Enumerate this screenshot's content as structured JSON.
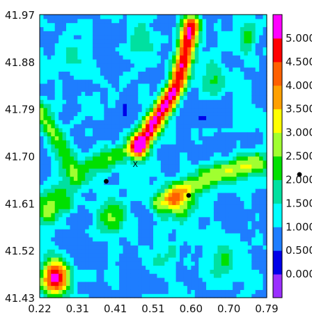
{
  "chart_data": {
    "type": "heatmap",
    "title": "",
    "xlabel": "",
    "ylabel": "",
    "xlim": [
      0.22,
      0.79
    ],
    "ylim": [
      41.43,
      41.97
    ],
    "x_ticks": [
      "0.22",
      "0.31",
      "0.41",
      "0.51",
      "0.60",
      "0.70",
      "0.79"
    ],
    "y_ticks": [
      "41.43",
      "41.52",
      "41.61",
      "41.70",
      "41.79",
      "41.88",
      "41.97"
    ],
    "colorbar": {
      "levels": [
        0.0,
        0.5,
        1.0,
        1.5,
        2.0,
        2.5,
        3.0,
        3.5,
        4.0,
        4.5,
        5.0
      ],
      "labels": [
        "0.000",
        "0.500",
        "1.000",
        "1.500",
        "2.000",
        "2.500",
        "3.000",
        "3.500",
        "4.000",
        "4.500",
        "5.000"
      ],
      "colors": [
        "#9a2fff",
        "#0000e8",
        "#1e7dff",
        "#00ffff",
        "#00e0a0",
        "#00e000",
        "#a0ff30",
        "#ffff00",
        "#ffa000",
        "#ff6000",
        "#ff0000",
        "#ff00ff"
      ]
    },
    "field_features": [
      {
        "shape": "ridge",
        "x": [
          0.47,
          0.57,
          0.6
        ],
        "y": [
          41.72,
          41.84,
          41.95
        ],
        "peak": 4.8
      },
      {
        "shape": "ridge",
        "x": [
          0.52,
          0.64,
          0.77
        ],
        "y": [
          41.61,
          41.66,
          41.69
        ],
        "peak": 2.6
      },
      {
        "shape": "peak",
        "x": 0.26,
        "y": 41.47,
        "peak": 5.0
      },
      {
        "shape": "peak",
        "x": 0.57,
        "y": 41.61,
        "peak": 2.6
      },
      {
        "shape": "peak",
        "x": 0.4,
        "y": 41.58,
        "peak": 2.2
      },
      {
        "shape": "peak",
        "x": 0.24,
        "y": 41.6,
        "peak": 2.0
      },
      {
        "shape": "peak",
        "x": 0.28,
        "y": 41.63,
        "peak": 1.9
      },
      {
        "shape": "ridge",
        "x": [
          0.22,
          0.31,
          0.46
        ],
        "y": [
          41.79,
          41.67,
          41.72
        ],
        "peak": 2.2
      },
      {
        "shape": "peak",
        "x": 0.66,
        "y": 41.85,
        "peak": 1.6
      },
      {
        "shape": "peak",
        "x": 0.74,
        "y": 41.93,
        "peak": 1.5
      },
      {
        "shape": "peak",
        "x": 0.48,
        "y": 41.92,
        "peak": 1.4
      },
      {
        "shape": "peak",
        "x": 0.31,
        "y": 41.9,
        "peak": 1.2
      },
      {
        "shape": "peak",
        "x": 0.68,
        "y": 41.5,
        "peak": 1.7
      },
      {
        "shape": "peak",
        "x": 0.53,
        "y": 41.51,
        "peak": 1.5
      },
      {
        "shape": "peak",
        "x": 0.74,
        "y": 41.78,
        "peak": 1.1
      }
    ],
    "markers": [
      {
        "symbol": "dot",
        "x": 0.387,
        "y": 41.652
      },
      {
        "symbol": "dot",
        "x": 0.594,
        "y": 41.625
      },
      {
        "symbol": "x",
        "x": 0.46,
        "y": 41.685,
        "label": "X"
      },
      {
        "symbol": "dot",
        "x": 0.79,
        "y": 41.665,
        "outside": true
      }
    ]
  }
}
